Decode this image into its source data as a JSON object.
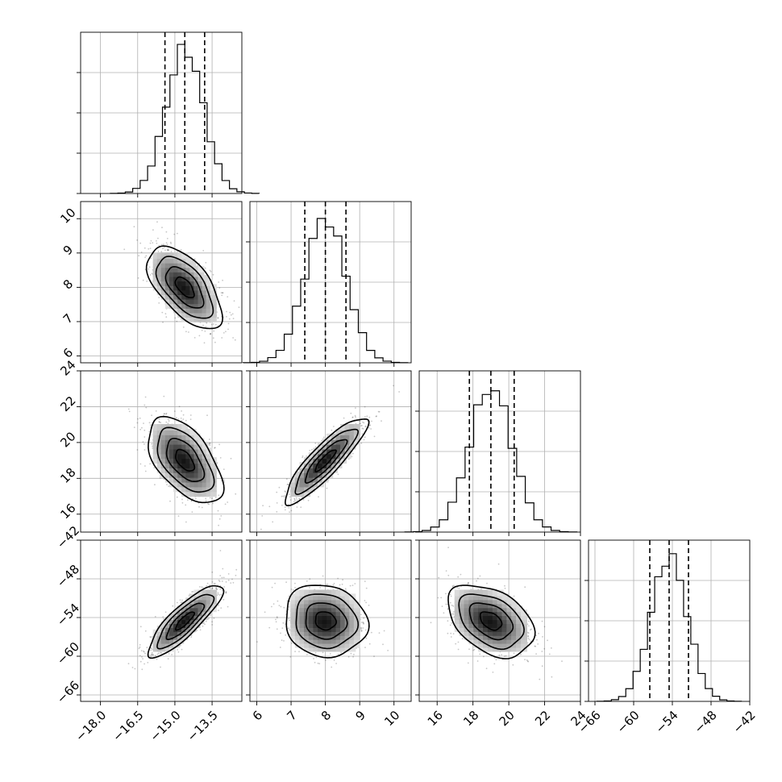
{
  "chart_data": {
    "type": "corner",
    "parameters": [
      {
        "range": [
          -18.8,
          -12.3
        ],
        "ticks": [
          -18.0,
          -16.5,
          -15.0,
          -13.5
        ],
        "tick_labels": [
          "−18.0",
          "−16.5",
          "−15.0",
          "−13.5"
        ],
        "mean": -14.6,
        "std": 0.75,
        "quantiles": [
          -15.4,
          -14.6,
          -13.8
        ]
      },
      {
        "range": [
          5.8,
          10.5
        ],
        "ticks": [
          6,
          7,
          8,
          9,
          10
        ],
        "tick_labels": [
          "6",
          "7",
          "8",
          "9",
          "10"
        ],
        "mean": 8.0,
        "std": 0.6,
        "quantiles": [
          7.4,
          8.0,
          8.6
        ]
      },
      {
        "range": [
          15.0,
          24.0
        ],
        "ticks": [
          16,
          18,
          20,
          22,
          24
        ],
        "tick_labels": [
          "16",
          "18",
          "20",
          "22",
          "24"
        ],
        "mean": 19.0,
        "std": 1.2,
        "quantiles": [
          17.8,
          19.0,
          20.3
        ]
      },
      {
        "range": [
          -67.0,
          -42.0
        ],
        "ticks": [
          -66,
          -60,
          -54,
          -48,
          -42
        ],
        "tick_labels": [
          "−66",
          "−60",
          "−54",
          "−48",
          "−42"
        ],
        "mean": -54.5,
        "std": 2.8,
        "quantiles": [
          -57.5,
          -54.5,
          -51.5
        ]
      }
    ],
    "correlations": {
      "1-0": -0.6,
      "2-0": -0.55,
      "2-1": 0.88,
      "3-0": 0.85,
      "3-1": -0.1,
      "3-2": -0.4
    },
    "grid": true,
    "contour_levels": 4
  }
}
